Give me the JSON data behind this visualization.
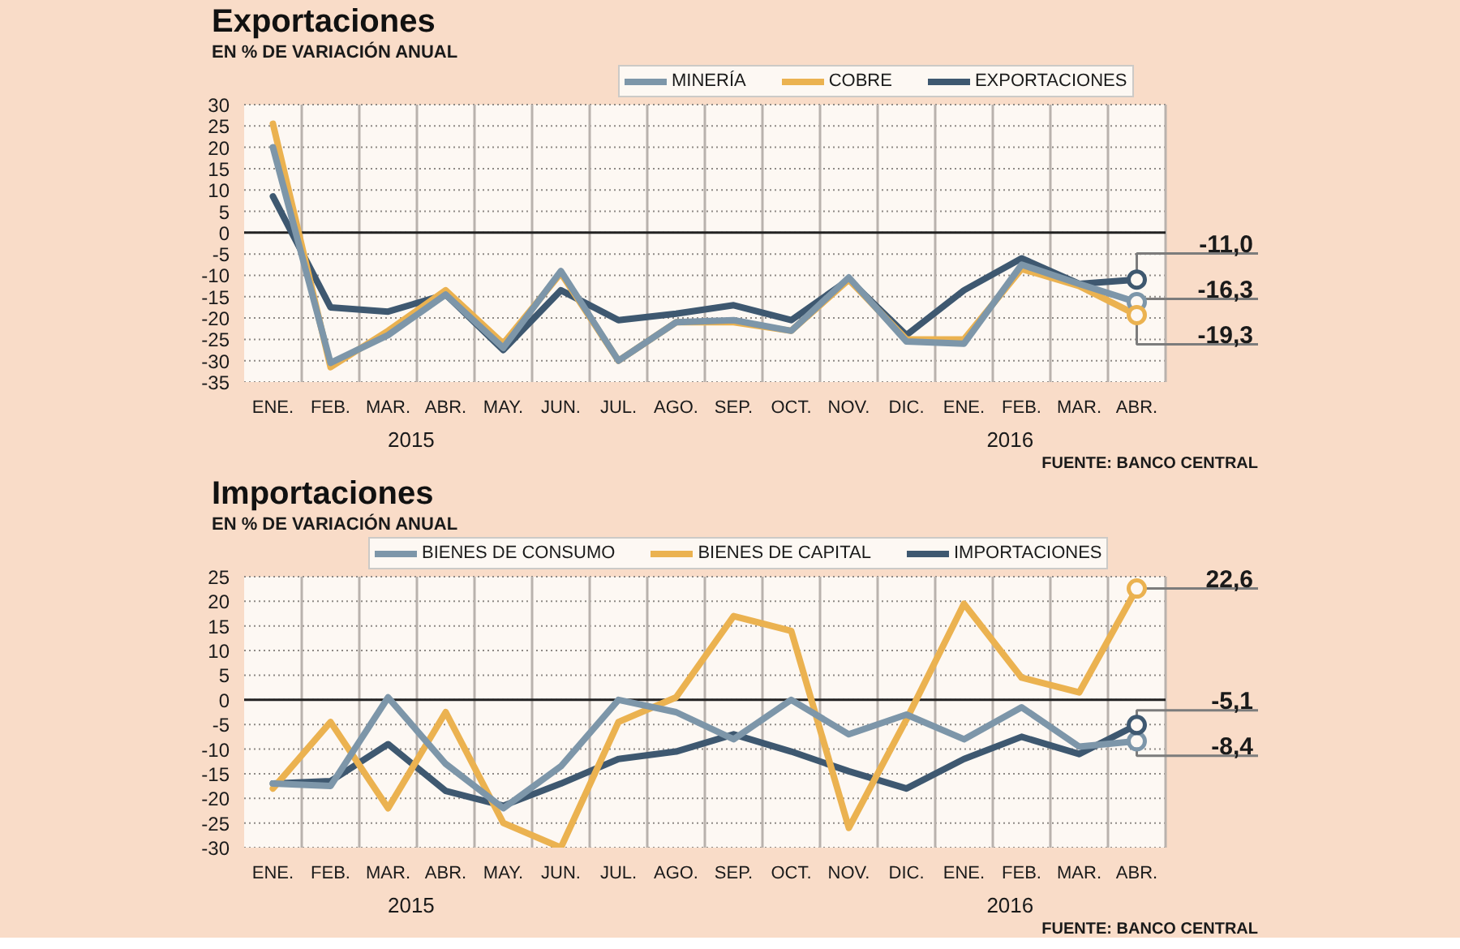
{
  "chart_data": [
    {
      "type": "line",
      "title": "Exportaciones",
      "subtitle": "EN % DE VARIACIÓN ANUAL",
      "categories": [
        "ENE.",
        "FEB.",
        "MAR.",
        "ABR.",
        "MAY.",
        "JUN.",
        "JUL.",
        "AGO.",
        "SEP.",
        "OCT.",
        "NOV.",
        "DIC.",
        "ENE.",
        "FEB.",
        "MAR.",
        "ABR."
      ],
      "series": [
        {
          "name": "MINERÍA",
          "color": "#7d96a9",
          "values": [
            20,
            -30.5,
            -24,
            -14.5,
            -27,
            -9,
            -30,
            -21,
            -20.5,
            -23,
            -10.5,
            -25.5,
            -26,
            -7.5,
            -12,
            -16.3
          ],
          "value_labels": [
            null,
            null,
            null,
            null,
            null,
            null,
            null,
            null,
            null,
            null,
            null,
            null,
            null,
            null,
            null,
            "-16,3"
          ]
        },
        {
          "name": "COBRE",
          "color": "#ebb250",
          "values": [
            25.5,
            -31.5,
            -23,
            -13.5,
            -26,
            -9.5,
            -30,
            -21,
            -21,
            -23,
            -11,
            -25,
            -25,
            -8.5,
            -12.5,
            -19.3
          ],
          "value_labels": [
            null,
            null,
            null,
            null,
            null,
            null,
            null,
            null,
            null,
            null,
            null,
            null,
            null,
            null,
            null,
            "-19,3"
          ]
        },
        {
          "name": "EXPORTACIONES",
          "color": "#3e5870",
          "values": [
            8.5,
            -17.5,
            -18.5,
            -14.5,
            -27.5,
            -13.5,
            -20.5,
            -19,
            -17,
            -20.5,
            -11,
            -24,
            -13.5,
            -6,
            -12,
            -11.0
          ],
          "value_labels": [
            null,
            null,
            null,
            null,
            null,
            null,
            null,
            null,
            null,
            null,
            null,
            null,
            null,
            null,
            null,
            "-11,0"
          ]
        }
      ],
      "ylim": [
        -35,
        30
      ],
      "yticks": [
        -35,
        -30,
        -25,
        -20,
        -15,
        -10,
        -5,
        0,
        5,
        10,
        15,
        20,
        25,
        30
      ],
      "grid": true,
      "legend": "top",
      "ref_lines": [
        {
          "axis": "y",
          "value": 0,
          "color": "#222222"
        }
      ],
      "annotations": [
        "2015",
        "2016",
        "FUENTE: BANCO CENTRAL"
      ]
    },
    {
      "type": "line",
      "title": "Importaciones",
      "subtitle": "EN % DE VARIACIÓN ANUAL",
      "categories": [
        "ENE.",
        "FEB.",
        "MAR.",
        "ABR.",
        "MAY.",
        "JUN.",
        "JUL.",
        "AGO.",
        "SEP.",
        "OCT.",
        "NOV.",
        "DIC.",
        "ENE.",
        "FEB.",
        "MAR.",
        "ABR."
      ],
      "series": [
        {
          "name": "BIENES DE CONSUMO",
          "color": "#7d96a9",
          "values": [
            -17,
            -17.5,
            0.5,
            -13,
            -22,
            -13.5,
            0,
            -2.5,
            -8,
            0,
            -7,
            -3,
            -8,
            -1.5,
            -9.5,
            -8.4
          ],
          "value_labels": [
            null,
            null,
            null,
            null,
            null,
            null,
            null,
            null,
            null,
            null,
            null,
            null,
            null,
            null,
            null,
            "-8,4"
          ]
        },
        {
          "name": "BIENES DE CAPITAL",
          "color": "#ebb250",
          "values": [
            -18,
            -4.5,
            -22,
            -2.5,
            -25,
            -30,
            -4.5,
            0.5,
            17,
            14,
            -26,
            -4,
            19.5,
            4.5,
            1.5,
            22.6
          ],
          "value_labels": [
            null,
            null,
            null,
            null,
            null,
            null,
            null,
            null,
            null,
            null,
            null,
            null,
            null,
            null,
            null,
            "22,6"
          ]
        },
        {
          "name": "IMPORTACIONES",
          "color": "#3e5870",
          "values": [
            -17,
            -16.5,
            -9,
            -18.5,
            -21.5,
            -17,
            -12,
            -10.5,
            -7,
            -10.5,
            -14.5,
            -18,
            -12,
            -7.5,
            -11,
            -5.1
          ],
          "value_labels": [
            null,
            null,
            null,
            null,
            null,
            null,
            null,
            null,
            null,
            null,
            null,
            null,
            null,
            null,
            null,
            "-5,1"
          ]
        }
      ],
      "ylim": [
        -30,
        25
      ],
      "yticks": [
        -30,
        -25,
        -20,
        -15,
        -10,
        -5,
        0,
        5,
        10,
        15,
        20,
        25
      ],
      "grid": true,
      "legend": "top",
      "ref_lines": [
        {
          "axis": "y",
          "value": 0,
          "color": "#222222"
        }
      ],
      "annotations": [
        "2015",
        "2016",
        "FUENTE: BANCO CENTRAL"
      ]
    }
  ]
}
